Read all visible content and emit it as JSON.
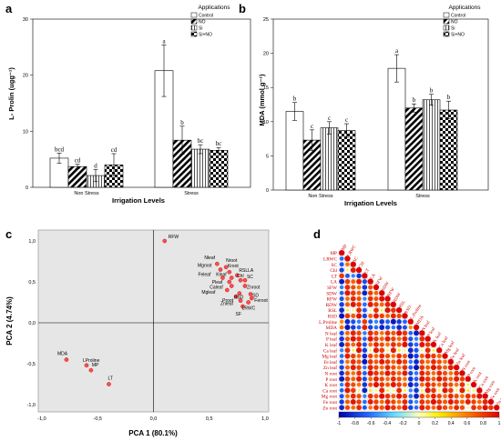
{
  "panels": {
    "a": {
      "letter": "a",
      "ylabel": "L- Prolin (ugg⁻¹)",
      "xlabel": "Irrigation Levels",
      "legend_title": "Applications",
      "yticks": [
        "0",
        "10",
        "20",
        "30"
      ]
    },
    "b": {
      "letter": "b",
      "ylabel": "MDA (mmol g⁻¹)",
      "xlabel": "Irrigation Levels",
      "legend_title": "Applications",
      "yticks": [
        "0",
        "5",
        "10",
        "15",
        "20",
        "25"
      ]
    },
    "c": {
      "letter": "c",
      "ylabel": "PCA 2 (4.74%)",
      "xlabel": "PCA 1 (80.1%)",
      "xticks": [
        "-1,0",
        "-0,5",
        "0,0",
        "0,5",
        "1,0"
      ],
      "yticks": [
        "1,0",
        "0,5",
        "0,0",
        "-0,5",
        "-1,0"
      ]
    },
    "d": {
      "letter": "d",
      "colorbar_ticks": [
        "-1",
        "-0.8",
        "-0.6",
        "-0.4",
        "-0.2",
        "0",
        "0.2",
        "0.4",
        "0.6",
        "0.8",
        "1"
      ]
    }
  },
  "chart_data": [
    {
      "id": "a",
      "type": "bar",
      "ylabel": "L- Prolin (ugg⁻¹)",
      "xlabel": "Irrigation Levels",
      "categories": [
        "Non Stress",
        "Stress"
      ],
      "ylim": [
        0,
        30
      ],
      "legend_position": "top-right",
      "series": [
        {
          "name": "Control",
          "values": [
            5.2,
            20.8
          ],
          "errors": [
            0.9,
            4.6
          ],
          "letters": [
            "bcd",
            "a"
          ],
          "pattern": "white"
        },
        {
          "name": "NO",
          "values": [
            3.7,
            8.4
          ],
          "errors": [
            0.4,
            2.5
          ],
          "letters": [
            "cd",
            "b"
          ],
          "pattern": "diag"
        },
        {
          "name": "Si",
          "values": [
            2.1,
            6.8
          ],
          "errors": [
            1.1,
            0.8
          ],
          "letters": [
            "d",
            "bc"
          ],
          "pattern": "vlines"
        },
        {
          "name": "Si+NO",
          "values": [
            4.0,
            6.6
          ],
          "errors": [
            2.0,
            0.5
          ],
          "letters": [
            "cd",
            "bc"
          ],
          "pattern": "checker"
        }
      ]
    },
    {
      "id": "b",
      "type": "bar",
      "ylabel": "MDA (mmol g⁻¹)",
      "xlabel": "Irrigation Levels",
      "categories": [
        "Non Stress",
        "Stress"
      ],
      "ylim": [
        0,
        25
      ],
      "legend_position": "top-right",
      "series": [
        {
          "name": "Control",
          "values": [
            11.5,
            17.8
          ],
          "errors": [
            1.3,
            2.0
          ],
          "letters": [
            "b",
            "a"
          ],
          "pattern": "white"
        },
        {
          "name": "NO",
          "values": [
            7.3,
            12.0
          ],
          "errors": [
            1.5,
            0.6
          ],
          "letters": [
            "c",
            "b"
          ],
          "pattern": "diag"
        },
        {
          "name": "Si",
          "values": [
            9.1,
            13.2
          ],
          "errors": [
            0.9,
            0.8
          ],
          "letters": [
            "c",
            "b"
          ],
          "pattern": "vlines"
        },
        {
          "name": "Si+NO",
          "values": [
            8.7,
            11.7
          ],
          "errors": [
            1.0,
            1.3
          ],
          "letters": [
            "c",
            "b"
          ],
          "pattern": "checker"
        }
      ]
    },
    {
      "id": "c",
      "type": "scatter",
      "xlabel": "PCA 1 (80.1%)",
      "ylabel": "PCA 2 (4.74%)",
      "xlim": [
        -1.0,
        1.0
      ],
      "ylim": [
        -1.0,
        1.0
      ],
      "points": [
        {
          "label": "RFW",
          "x": 0.1,
          "y": 1.0
        },
        {
          "label": "Nleaf",
          "x": 0.57,
          "y": 0.72
        },
        {
          "label": "Nroot",
          "x": 0.65,
          "y": 0.68
        },
        {
          "label": "Kroot",
          "x": 0.68,
          "y": 0.62
        },
        {
          "label": "Mgroot",
          "x": 0.6,
          "y": 0.65
        },
        {
          "label": "RSLLA",
          "x": 0.75,
          "y": 0.58
        },
        {
          "label": "Kleaf",
          "x": 0.7,
          "y": 0.55
        },
        {
          "label": "Feleaf",
          "x": 0.62,
          "y": 0.55
        },
        {
          "label": "Chl",
          "x": 0.78,
          "y": 0.52
        },
        {
          "label": "SC",
          "x": 0.82,
          "y": 0.52
        },
        {
          "label": "Pleaf",
          "x": 0.68,
          "y": 0.5
        },
        {
          "label": "Caleaf",
          "x": 0.7,
          "y": 0.45
        },
        {
          "label": "Znroot",
          "x": 0.82,
          "y": 0.45
        },
        {
          "label": "Mgleaf",
          "x": 0.66,
          "y": 0.4
        },
        {
          "label": "SD",
          "x": 0.87,
          "y": 0.35
        },
        {
          "label": "RSD",
          "x": 0.77,
          "y": 0.36
        },
        {
          "label": "Feroot",
          "x": 0.88,
          "y": 0.3
        },
        {
          "label": "Proot",
          "x": 0.74,
          "y": 0.32
        },
        {
          "label": "Znleaf",
          "x": 0.78,
          "y": 0.27
        },
        {
          "label": "LRWC",
          "x": 0.85,
          "y": 0.25
        },
        {
          "label": "SF",
          "x": 0.8,
          "y": 0.2
        },
        {
          "label": "MDA",
          "x": -0.78,
          "y": -0.45
        },
        {
          "label": "LProline",
          "x": -0.6,
          "y": -0.52
        },
        {
          "label": "MP",
          "x": -0.56,
          "y": -0.58
        },
        {
          "label": "LT",
          "x": -0.4,
          "y": -0.75
        }
      ]
    },
    {
      "id": "d",
      "type": "heatmap",
      "variables": [
        "MP",
        "LRWC",
        "SC",
        "Chl",
        "LT",
        "LA",
        "SFW",
        "SDW",
        "RFW",
        "RDW",
        "RSL",
        "RSD",
        "L.Proline",
        "MDA",
        "N leaf",
        "P leaf",
        "K leaf",
        "Ca leaf",
        "Mg leaf",
        "Fe leaf",
        "Zn leaf",
        "N root",
        "P root",
        "K root",
        "Ca root",
        "Mg root",
        "Fe root",
        "Zn root"
      ],
      "range": [
        -1,
        1
      ],
      "negative_group": [
        "MP",
        "LT",
        "L.Proline",
        "MDA"
      ]
    }
  ]
}
